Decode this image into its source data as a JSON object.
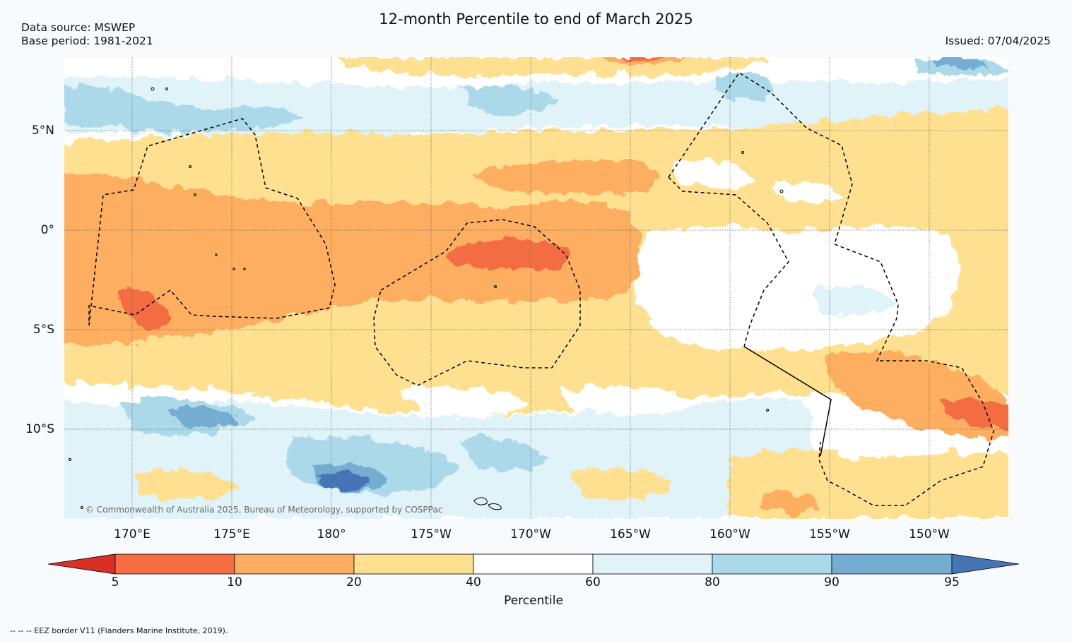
{
  "header": {
    "title": "12-month Percentile to end of March 2025",
    "data_source": "Data source: MSWEP",
    "base_period": "Base period: 1981-2021",
    "issued": "Issued: 07/04/2025"
  },
  "map": {
    "lat_labels": [
      "5°N",
      "0°",
      "5°S",
      "10°S"
    ],
    "lon_labels": [
      "170°E",
      "175°E",
      "180°",
      "175°W",
      "170°W",
      "165°W",
      "160°W",
      "155°W",
      "150°W"
    ],
    "credit": "© Commonwealth of Australia 2025, Bureau of Meteorology, supported by COSPPac"
  },
  "colorbar": {
    "label": "Percentile",
    "ticks": [
      "5",
      "10",
      "20",
      "40",
      "60",
      "80",
      "90",
      "95"
    ],
    "colors": {
      "below_5": "#d73027",
      "p5_10": "#f46d43",
      "p10_20": "#fdae61",
      "p20_40": "#fee090",
      "p40_60": "#ffffff",
      "p60_80": "#e0f3f8",
      "p80_90": "#abd9e9",
      "p90_95": "#74add1",
      "above_95": "#4575b4"
    }
  },
  "footer": {
    "eez_note": "--  --  -- EEZ border V11 (Flanders Marine Institute, 2019)."
  }
}
